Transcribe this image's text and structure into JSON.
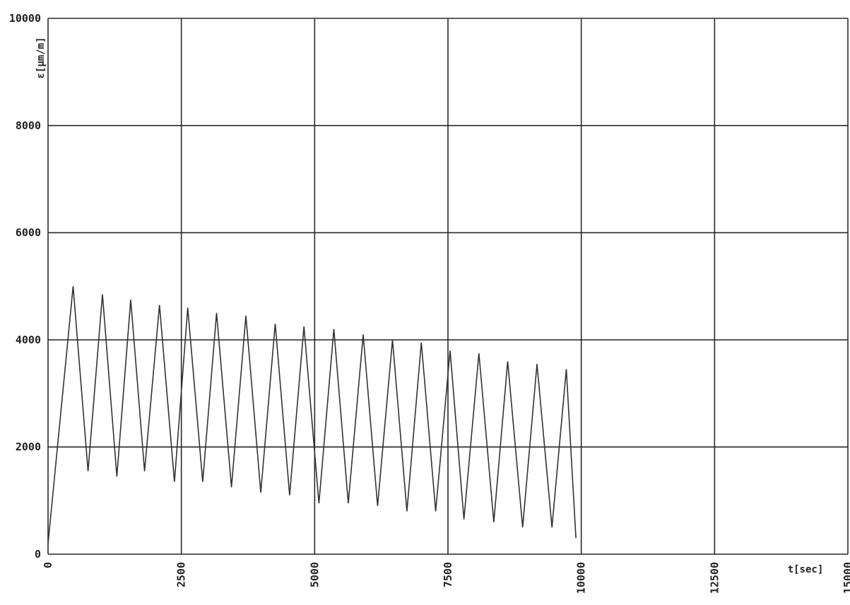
{
  "chart_data": {
    "type": "line",
    "xlabel": "t[sec]",
    "ylabel": "ε[μm/m]",
    "xlim": [
      0,
      15000
    ],
    "ylim": [
      0,
      10000
    ],
    "x_ticks": [
      0,
      2500,
      5000,
      7500,
      10000,
      12500,
      15000
    ],
    "x_tick_labels": [
      "0",
      "2500",
      "5000",
      "7500",
      "10000",
      "12500",
      "15000"
    ],
    "y_ticks": [
      0,
      2000,
      4000,
      6000,
      8000,
      10000
    ],
    "y_tick_labels": [
      "0",
      "2000",
      "4000",
      "6000",
      "8000",
      "10000"
    ],
    "grid": true,
    "series": [
      {
        "color": "#333333",
        "x": [
          0,
          470,
          750,
          1020,
          1290,
          1550,
          1810,
          2090,
          2370,
          2620,
          2900,
          3160,
          3440,
          3710,
          3990,
          4260,
          4530,
          4800,
          5080,
          5360,
          5630,
          5910,
          6180,
          6460,
          6730,
          7000,
          7270,
          7540,
          7800,
          8080,
          8360,
          8620,
          8900,
          9170,
          9450,
          9720,
          9900
        ],
        "y": [
          200,
          5000,
          1550,
          4850,
          1450,
          4750,
          1550,
          4650,
          1350,
          4600,
          1350,
          4500,
          1250,
          4450,
          1150,
          4300,
          1100,
          4250,
          950,
          4200,
          950,
          4100,
          900,
          4000,
          800,
          3950,
          800,
          3800,
          650,
          3750,
          600,
          3600,
          500,
          3550,
          500,
          3450,
          300
        ]
      }
    ]
  }
}
